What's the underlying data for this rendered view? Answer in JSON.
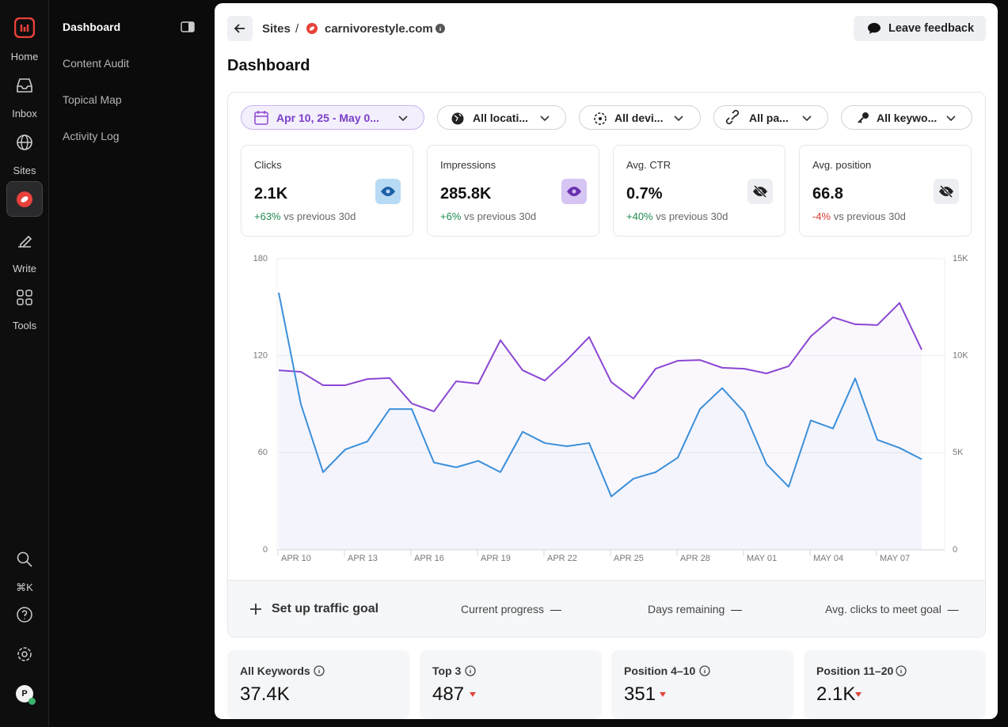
{
  "nav": {
    "items": [
      "Home",
      "Inbox",
      "Sites",
      "Write",
      "Tools"
    ],
    "shortcut": "⌘K",
    "avatar": "P"
  },
  "sidebar": {
    "items": [
      "Dashboard",
      "Content Audit",
      "Topical Map",
      "Activity Log"
    ]
  },
  "breadcrumb": {
    "root": "Sites",
    "separator": "/",
    "site": "carnivorestyle.com"
  },
  "feedback_button": "Leave feedback",
  "page_title": "Dashboard",
  "filters": [
    "Apr 10, 25 - May 0...",
    "All locati...",
    "All devi...",
    "All pa...",
    "All keywo..."
  ],
  "metrics": [
    {
      "label": "Clicks",
      "value": "2.1K",
      "change": "+63%",
      "comparison": "vs previous 30d"
    },
    {
      "label": "Impressions",
      "value": "285.8K",
      "change": "+6%",
      "comparison": "vs previous 30d"
    },
    {
      "label": "Avg. CTR",
      "value": "0.7%",
      "change": "+40%",
      "comparison": "vs previous 30d"
    },
    {
      "label": "Avg. position",
      "value": "66.8",
      "change": "-4%",
      "comparison": "vs previous 30d"
    }
  ],
  "chart_data": {
    "type": "line",
    "categories": [
      "APR 10",
      null,
      null,
      "APR 13",
      null,
      null,
      "APR 16",
      null,
      null,
      "APR 19",
      null,
      null,
      "APR 22",
      null,
      null,
      "APR 25",
      null,
      null,
      "APR 28",
      null,
      null,
      "MAY 01",
      null,
      null,
      "MAY 04",
      null,
      null,
      "MAY 07",
      null,
      null
    ],
    "series": [
      {
        "color": "#8b46d3",
        "axis": "y2",
        "values": [
          9250,
          9170,
          8480,
          8480,
          8800,
          8850,
          7540,
          7130,
          8680,
          8560,
          10800,
          9250,
          8720,
          9780,
          10960,
          8640,
          7790,
          9330,
          9740,
          9780,
          9380,
          9330,
          9090,
          9460,
          11000,
          11980,
          11620,
          11580,
          12720,
          10310
        ]
      },
      {
        "color": "#3b8fd9",
        "values": [
          159,
          90,
          48,
          62,
          67,
          87,
          87,
          54,
          51,
          55,
          48,
          73,
          66,
          64,
          66,
          33,
          44,
          48,
          57,
          87,
          100,
          85,
          53,
          39,
          80,
          75,
          106,
          68,
          63,
          56
        ]
      }
    ],
    "ylim": [
      0,
      180
    ],
    "yticks": [
      0,
      60,
      120,
      180
    ],
    "y2lim": [
      0,
      15000
    ],
    "y2ticks": [
      0,
      {
        "value": 5000,
        "label": "5K"
      },
      {
        "value": 10000,
        "label": "10K"
      },
      {
        "value": 15000,
        "label": "15K"
      }
    ],
    "grid": true
  },
  "goal": {
    "action": "Set up traffic goal",
    "stats": [
      {
        "label": "Current progress",
        "value": "—"
      },
      {
        "label": "Days remaining",
        "value": "—"
      },
      {
        "label": "Avg. clicks to meet goal",
        "value": "—"
      }
    ]
  },
  "keyword_cards": [
    {
      "label": "All Keywords",
      "value": "37.4K"
    },
    {
      "label": "Top 3",
      "value": "487"
    },
    {
      "label": "Position 4–10",
      "value": "351"
    },
    {
      "label": "Position 11–20",
      "value": "2.1K"
    }
  ]
}
